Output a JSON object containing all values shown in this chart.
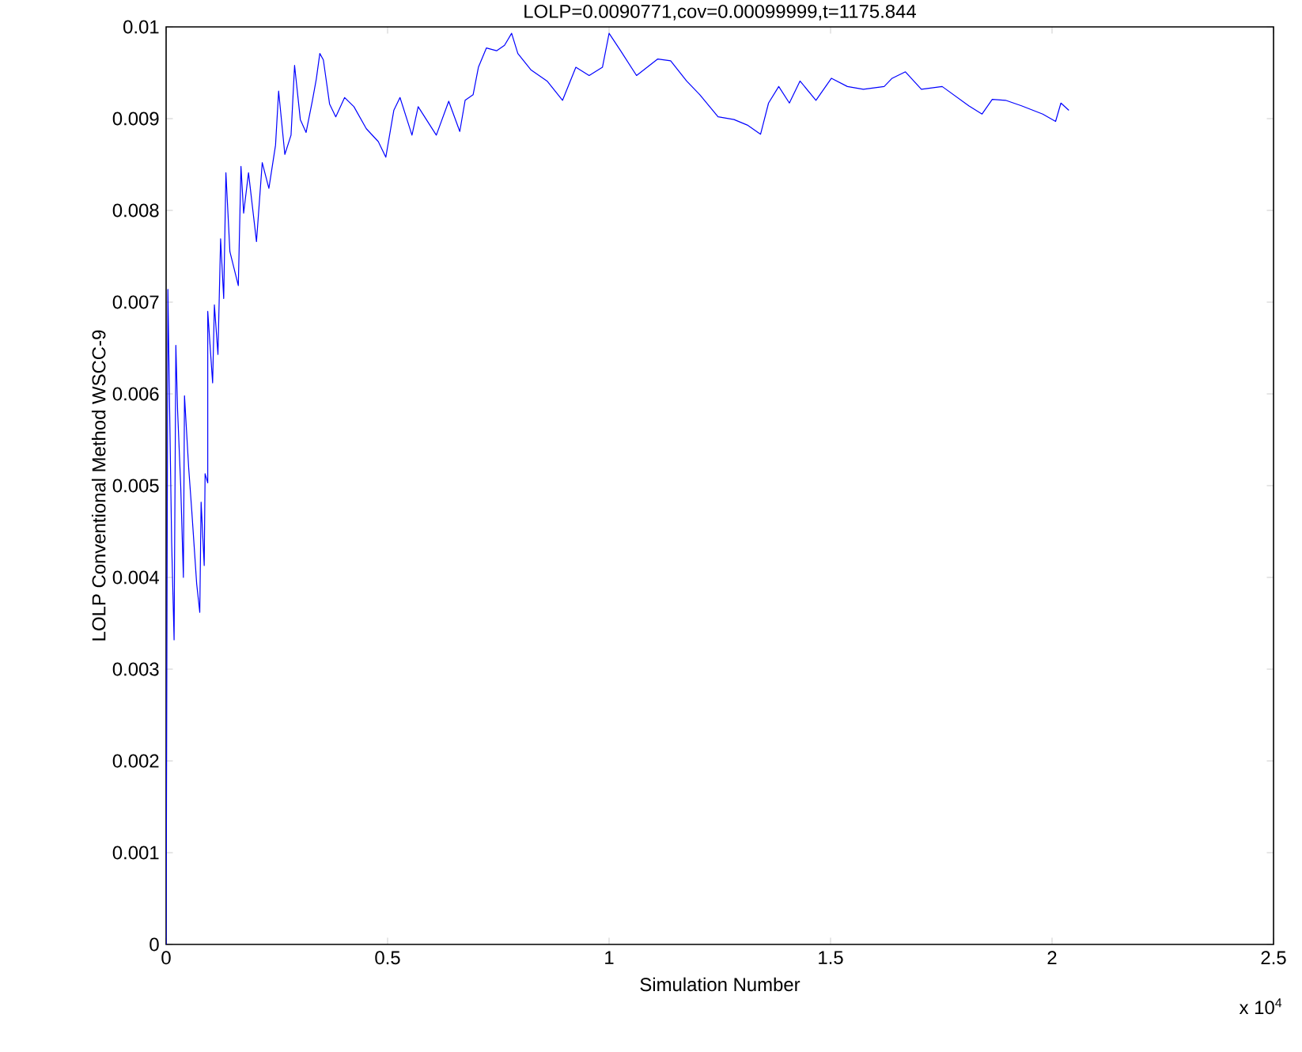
{
  "chart_data": {
    "type": "line",
    "title": "LOLP=0.0090771,cov=0.00099999,t=1175.844",
    "xlabel": "Simulation Number",
    "ylabel": "LOLP Conventional Method WSCC-9",
    "annotations": [
      "x 10$^{4}$"
    ],
    "x": [
      0,
      0.004,
      0.008,
      0.0125,
      0.018,
      0.022,
      0.026,
      0.033,
      0.039,
      0.0415,
      0.051,
      0.058,
      0.069,
      0.076,
      0.079,
      0.086,
      0.088,
      0.094,
      0.094,
      0.105,
      0.109,
      0.117,
      0.123,
      0.13,
      0.135,
      0.144,
      0.163,
      0.169,
      0.175,
      0.186,
      0.204,
      0.217,
      0.232,
      0.247,
      0.254,
      0.268,
      0.282,
      0.29,
      0.303,
      0.316,
      0.33,
      0.339,
      0.347,
      0.355,
      0.369,
      0.383,
      0.403,
      0.424,
      0.452,
      0.479,
      0.496,
      0.514,
      0.528,
      0.555,
      0.569,
      0.61,
      0.638,
      0.663,
      0.675,
      0.693,
      0.705,
      0.723,
      0.746,
      0.764,
      0.78,
      0.794,
      0.824,
      0.86,
      0.895,
      0.925,
      0.955,
      0.985,
      1.0,
      1.026,
      1.062,
      1.11,
      1.139,
      1.175,
      1.205,
      1.246,
      1.282,
      1.312,
      1.342,
      1.36,
      1.383,
      1.407,
      1.431,
      1.467,
      1.502,
      1.538,
      1.574,
      1.621,
      1.639,
      1.669,
      1.705,
      1.752,
      1.812,
      1.842,
      1.865,
      1.895,
      1.931,
      1.979,
      2.008,
      2.02,
      2.038
    ],
    "series": [
      {
        "color": "#0000ff",
        "values": [
          0,
          0.00714,
          0.00581,
          0.00438,
          0.00332,
          0.00653,
          0.00581,
          0.00499,
          0.004,
          0.00598,
          0.00519,
          0.00472,
          0.00393,
          0.00362,
          0.00482,
          0.00413,
          0.00513,
          0.00503,
          0.0069,
          0.00612,
          0.00697,
          0.00643,
          0.00769,
          0.00704,
          0.00841,
          0.00755,
          0.00718,
          0.00848,
          0.00797,
          0.00841,
          0.00766,
          0.00852,
          0.00824,
          0.00871,
          0.0093,
          0.00861,
          0.00882,
          0.00958,
          0.00899,
          0.00885,
          0.00919,
          0.00943,
          0.00971,
          0.00964,
          0.00916,
          0.00902,
          0.00923,
          0.00913,
          0.00889,
          0.00875,
          0.00858,
          0.00909,
          0.00923,
          0.00882,
          0.00913,
          0.00882,
          0.00919,
          0.00886,
          0.0092,
          0.00926,
          0.00956,
          0.00977,
          0.00974,
          0.0098,
          0.00993,
          0.00971,
          0.00953,
          0.00941,
          0.0092,
          0.00956,
          0.00947,
          0.00956,
          0.00993,
          0.00974,
          0.00947,
          0.00965,
          0.00963,
          0.00941,
          0.00926,
          0.00902,
          0.00899,
          0.00893,
          0.00883,
          0.00917,
          0.00935,
          0.00917,
          0.00941,
          0.0092,
          0.00944,
          0.00935,
          0.00932,
          0.00935,
          0.00944,
          0.00951,
          0.00932,
          0.00935,
          0.00914,
          0.00905,
          0.00921,
          0.0092,
          0.00914,
          0.00905,
          0.00897,
          0.00917,
          0.00909
        ]
      }
    ],
    "xlim": [
      0,
      2.5
    ],
    "ylim": [
      0,
      0.01
    ],
    "xticks": [
      0,
      0.5,
      1,
      1.5,
      2,
      2.5
    ],
    "yticks": [
      0,
      0.001,
      0.002,
      0.003,
      0.004,
      0.005,
      0.006,
      0.007,
      0.008,
      0.009,
      0.01
    ],
    "grid": false,
    "marker": "none",
    "line_style": "solid"
  }
}
